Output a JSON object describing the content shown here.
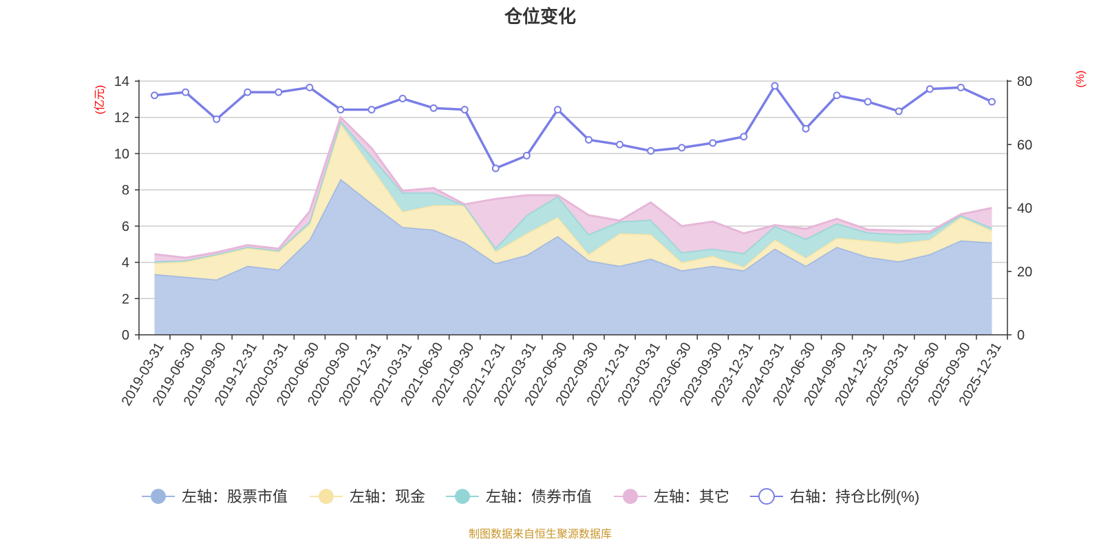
{
  "chart_data": {
    "type": "area",
    "title": "仓位变化",
    "x": [
      "2019-03-31",
      "2019-06-30",
      "2019-09-30",
      "2019-12-31",
      "2020-03-31",
      "2020-06-30",
      "2020-09-30",
      "2020-12-31",
      "2021-03-31",
      "2021-06-30",
      "2021-09-30",
      "2021-12-31",
      "2022-03-31",
      "2022-06-30",
      "2022-09-30",
      "2022-12-31",
      "2023-03-31",
      "2023-06-30",
      "2023-09-30",
      "2023-12-31",
      "2024-03-31",
      "2024-06-30",
      "2024-09-30",
      "2024-12-31",
      "2025-03-31",
      "2025-06-30",
      "2025-09-30",
      "2025-12-31"
    ],
    "left_axis": {
      "unit": "(亿元)",
      "ylim": [
        0,
        14
      ],
      "ticks": [
        0,
        2,
        4,
        6,
        8,
        10,
        12,
        14
      ]
    },
    "right_axis": {
      "unit": "(%)",
      "ylim": [
        0,
        80
      ],
      "ticks": [
        0,
        20,
        40,
        60,
        80
      ]
    },
    "series": [
      {
        "name": "左轴：股票市值",
        "axis": "left",
        "stack": true,
        "color": "#9db6e0",
        "fill": "#b7c9ea",
        "values": [
          3.35,
          3.2,
          3.05,
          3.8,
          3.6,
          5.25,
          8.6,
          7.25,
          5.95,
          5.8,
          5.1,
          3.95,
          4.4,
          5.45,
          4.1,
          3.8,
          4.2,
          3.55,
          3.8,
          3.55,
          4.75,
          3.8,
          4.85,
          4.3,
          4.05,
          4.45,
          5.2,
          5.1
        ]
      },
      {
        "name": "左轴：现金",
        "axis": "left",
        "stack": true,
        "color": "#f7e4a5",
        "fill": "#faecbd",
        "values": [
          0.6,
          0.85,
          1.35,
          1.0,
          1.0,
          0.85,
          3.05,
          2.0,
          0.85,
          1.35,
          2.05,
          0.65,
          1.2,
          1.05,
          0.35,
          1.8,
          1.35,
          0.45,
          0.55,
          0.2,
          0.5,
          0.45,
          0.5,
          0.9,
          1.0,
          0.8,
          1.3,
          0.65
        ]
      },
      {
        "name": "左轴：债券市值",
        "axis": "left",
        "stack": true,
        "color": "#94d6d6",
        "fill": "#b2e0e0",
        "values": [
          0.1,
          0.05,
          0.05,
          0.05,
          0.05,
          0.15,
          0.15,
          0.6,
          1.05,
          0.7,
          0.0,
          0.2,
          1.0,
          1.15,
          1.1,
          0.65,
          0.8,
          0.55,
          0.4,
          0.75,
          0.75,
          1.05,
          0.8,
          0.45,
          0.5,
          0.35,
          0.1,
          0.15
        ]
      },
      {
        "name": "左轴：其它",
        "axis": "left",
        "stack": true,
        "color": "#e6b7d9",
        "fill": "#eecbe4",
        "values": [
          0.4,
          0.15,
          0.1,
          0.1,
          0.1,
          0.55,
          0.2,
          0.45,
          0.1,
          0.25,
          0.05,
          2.7,
          1.1,
          0.05,
          1.05,
          0.05,
          0.95,
          1.45,
          1.5,
          1.1,
          0.05,
          0.55,
          0.25,
          0.15,
          0.2,
          0.1,
          0.05,
          1.1
        ]
      },
      {
        "name": "右轴：持仓比例(%)",
        "axis": "right",
        "stack": false,
        "color": "#7a7ee6",
        "values": [
          75.5,
          76.5,
          68,
          76.5,
          76.5,
          78,
          71,
          71,
          74.5,
          71.5,
          71,
          52.5,
          56.5,
          71,
          61.5,
          60,
          58,
          59,
          60.5,
          62.5,
          78.5,
          65,
          75.5,
          73.5,
          70.5,
          77.5,
          78,
          73.5
        ]
      }
    ]
  },
  "legend": [
    "左轴：股票市值",
    "左轴：现金",
    "左轴：债券市值",
    "左轴：其它",
    "右轴：持仓比例(%)"
  ],
  "source": "制图数据来自恒生聚源数据库"
}
